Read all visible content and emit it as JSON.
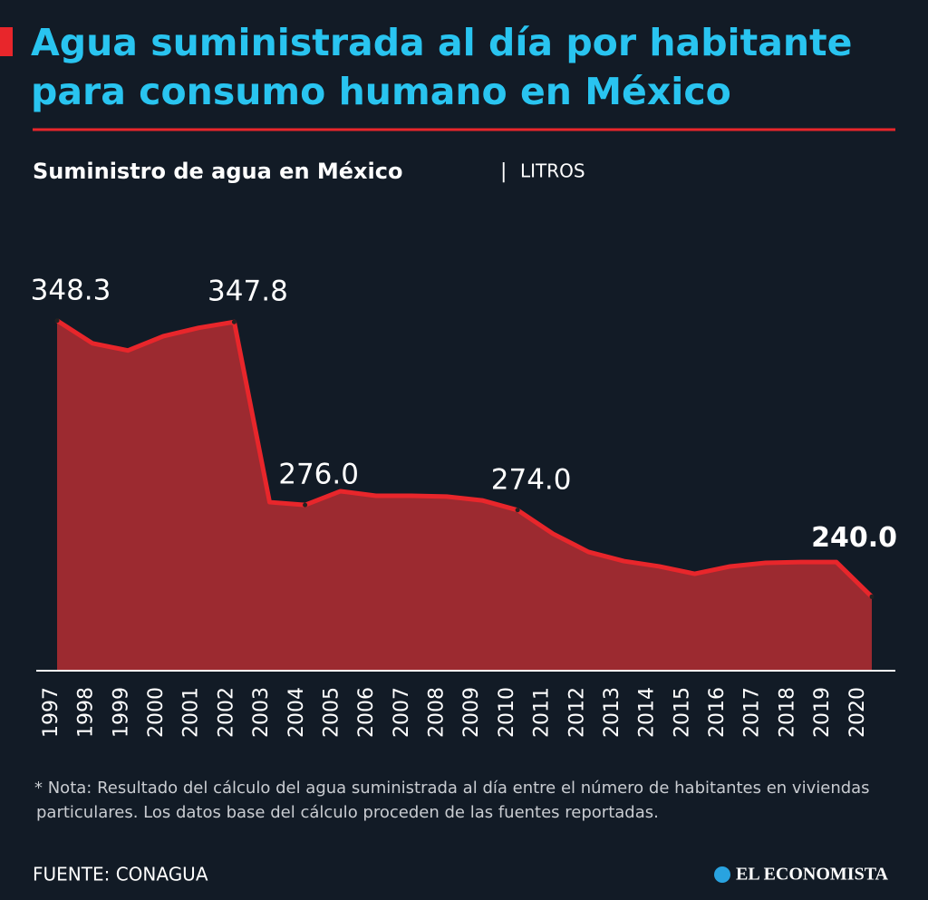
{
  "chart_data": {
    "type": "area",
    "title": "Agua suministrada al día por habitante para consumo humano en México",
    "subtitle": "Suministro de agua en México",
    "unit": "LITROS",
    "note": "* Nota: Resultado del cálculo del agua suministrada al día entre el número de habitantes en viviendas particulares. Los datos base del cálculo proceden de las fuentes reportadas.",
    "source": "FUENTE: CONAGUA",
    "brand": "EL ECONOMISTA",
    "categories": [
      "1997",
      "1998",
      "1999",
      "2000",
      "2001",
      "2002",
      "2003",
      "2004",
      "2005",
      "2006",
      "2007",
      "2008",
      "2009",
      "2010",
      "2011",
      "2012",
      "2013",
      "2014",
      "2015",
      "2016",
      "2017",
      "2018",
      "2019",
      "2020"
    ],
    "series": [
      {
        "name": "Suministro",
        "color": "#e8262b",
        "values": [
          348.3,
          339.4,
          336.6,
          342.2,
          345.5,
          347.8,
          277.1,
          276.0,
          281.4,
          279.6,
          279.6,
          279.3,
          277.8,
          274.0,
          264.7,
          257.6,
          254.0,
          251.9,
          249.0,
          251.9,
          253.3,
          253.6,
          253.6,
          240.0
        ],
        "value_labels": [
          "348.3",
          null,
          null,
          null,
          null,
          "347.8",
          null,
          "276.0",
          null,
          null,
          null,
          null,
          null,
          "274.0",
          null,
          null,
          null,
          null,
          null,
          null,
          null,
          null,
          null,
          "240.0"
        ]
      }
    ],
    "fill_color": "#9c2a30",
    "ylim": [
      211,
      350
    ]
  }
}
